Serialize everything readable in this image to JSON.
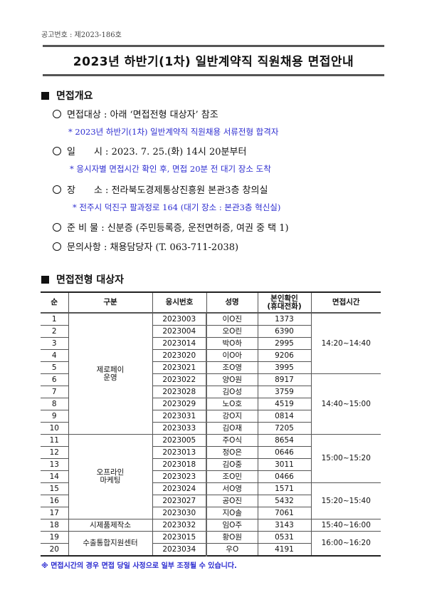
{
  "notice_number": "공고번호 : 제2023-186호",
  "title": "2023년 하반기(1차) 일반계약직 직원채용 면접안내",
  "section1": {
    "heading": "면접개요",
    "items": [
      {
        "label": "면접대상 : 아래 ‘면접전형 대상자’ 참조",
        "note": "* 2023년 하반기(1차) 일반계약직 직원채용 서류전형 합격자"
      },
      {
        "label": "일　　시 : 2023. 7. 25.(화) 14시 20분부터",
        "note": "* 응시자별 면접시간 확인 후, 면접 20분 전 대기 장소 도착"
      },
      {
        "label": "장　　소 : 전라북도경제통상진흥원 본관3층 창의실",
        "note": "* 전주시 덕진구 팔과정로 164 (대기 장소 : 본관3층 혁신실)"
      },
      {
        "label": "준 비 물 : 신분증 (주민등록증, 운전면허증, 여권 중 택 1)"
      },
      {
        "label": "문의사항 : 채용담당자 (T. 063-711-2038)"
      }
    ]
  },
  "section2": {
    "heading": "면접전형 대상자"
  },
  "table": {
    "headers": [
      "순",
      "구분",
      "응시번호",
      "성명",
      "본인확인\n(휴대전화)",
      "면접시간"
    ],
    "rows": [
      [
        "1",
        "2023003",
        "이O진",
        "1373"
      ],
      [
        "2",
        "2023004",
        "오O린",
        "6390"
      ],
      [
        "3",
        "2023014",
        "박O하",
        "2995"
      ],
      [
        "4",
        "2023020",
        "이O아",
        "9206"
      ],
      [
        "5",
        "2023021",
        "조O영",
        "3995"
      ],
      [
        "6",
        "2023022",
        "양O원",
        "8917"
      ],
      [
        "7",
        "2023028",
        "김O성",
        "3759"
      ],
      [
        "8",
        "2023029",
        "노O호",
        "4519"
      ],
      [
        "9",
        "2023031",
        "강O지",
        "0814"
      ],
      [
        "10",
        "2023033",
        "김O재",
        "7205"
      ],
      [
        "11",
        "2023005",
        "주O식",
        "8654"
      ],
      [
        "12",
        "2023013",
        "정O은",
        "0646"
      ],
      [
        "13",
        "2023018",
        "김O중",
        "3011"
      ],
      [
        "14",
        "2023023",
        "조O민",
        "0466"
      ],
      [
        "15",
        "2023024",
        "서O영",
        "1571"
      ],
      [
        "16",
        "2023027",
        "공O진",
        "5432"
      ],
      [
        "17",
        "2023030",
        "지O솔",
        "7061"
      ],
      [
        "18",
        "2023032",
        "임O주",
        "3143"
      ],
      [
        "19",
        "2023015",
        "황O원",
        "0531"
      ],
      [
        "20",
        "2023034",
        "우O",
        "4191"
      ]
    ],
    "categories": [
      {
        "label": "제로페이\n운영",
        "start": 0,
        "span": 10
      },
      {
        "label": "오프라인\n마케팅",
        "start": 10,
        "span": 7
      },
      {
        "label": "시제품제작소",
        "start": 17,
        "span": 1
      },
      {
        "label": "수출통합지원센터",
        "start": 18,
        "span": 2
      }
    ],
    "times": [
      {
        "label": "14:20~14:40",
        "start": 0,
        "span": 5
      },
      {
        "label": "14:40~15:00",
        "start": 5,
        "span": 5
      },
      {
        "label": "15:00~15:20",
        "start": 10,
        "span": 4
      },
      {
        "label": "15:20~15:40",
        "start": 14,
        "span": 3
      },
      {
        "label": "15:40~16:00",
        "start": 17,
        "span": 1
      },
      {
        "label": "16:00~16:20",
        "start": 18,
        "span": 2
      }
    ]
  },
  "footnote": "※ 면접시간의 경우 면접 당일 사정으로 일부 조정될 수 있습니다.",
  "colors": {
    "note_blue": "#2b2bd0"
  }
}
